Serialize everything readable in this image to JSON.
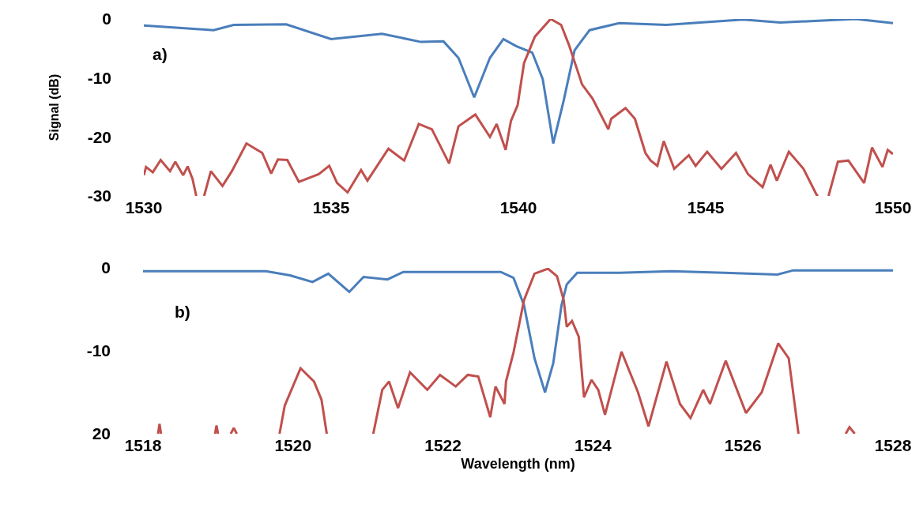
{
  "chart_data": [
    {
      "type": "line",
      "ylabel": "Signal (dB)",
      "annotations": [
        "a)"
      ],
      "xlim": [
        1530,
        1550
      ],
      "xticks": [
        1530,
        1535,
        1540,
        1545,
        1550
      ],
      "ylim": [
        -30,
        0
      ],
      "yticks": [
        -30,
        -20,
        -10,
        0
      ],
      "series": [
        {
          "color": "#4a7ebb",
          "x": [
            1530,
            1531.86,
            1532.4,
            1533.8,
            1535.0,
            1536.36,
            1537.4,
            1538.0,
            1538.4,
            1538.82,
            1539.24,
            1539.6,
            1539.94,
            1540.37,
            1540.65,
            1540.93,
            1541.21,
            1541.5,
            1541.9,
            1542.69,
            1543.95,
            1546.0,
            1546.99,
            1549.0,
            1550.0
          ],
          "values": [
            -1.1,
            -1.9,
            -1.0,
            -0.9,
            -3.4,
            -2.5,
            -3.9,
            -3.8,
            -6.6,
            -13.3,
            -6.6,
            -3.4,
            -4.6,
            -5.7,
            -10.2,
            -21.1,
            -13.8,
            -5.3,
            -1.9,
            -0.7,
            -1.0,
            -0.1,
            -0.6,
            0,
            -0.7
          ]
        },
        {
          "color": "#c0504d",
          "x": [
            1530,
            1530.06,
            1530.24,
            1530.45,
            1530.7,
            1530.84,
            1531.05,
            1531.17,
            1531.3,
            1531.4,
            1531.5,
            1531.61,
            1531.79,
            1532.1,
            1532.35,
            1532.74,
            1533.16,
            1533.4,
            1533.58,
            1533.83,
            1534.14,
            1534.67,
            1534.95,
            1535.16,
            1535.44,
            1535.8,
            1535.97,
            1536.53,
            1536.95,
            1537.34,
            1537.69,
            1538.15,
            1538.4,
            1538.85,
            1539.24,
            1539.42,
            1539.66,
            1539.8,
            1539.98,
            1540.15,
            1540.44,
            1540.86,
            1541.14,
            1541.35,
            1541.7,
            1541.98,
            1542.4,
            1542.48,
            1542.86,
            1543.11,
            1543.39,
            1543.53,
            1543.71,
            1543.88,
            1544.16,
            1544.55,
            1544.73,
            1545.04,
            1545.42,
            1545.81,
            1546.13,
            1546.52,
            1546.73,
            1546.9,
            1547.22,
            1547.61,
            1547.96,
            1548.0,
            1548.2,
            1548.28,
            1548.53,
            1548.81,
            1549.23,
            1549.44,
            1549.72,
            1549.86,
            1550.0
          ],
          "values": [
            -26.5,
            -25.1,
            -26.0,
            -23.9,
            -25.8,
            -24.2,
            -26.5,
            -25.0,
            -27.1,
            -30,
            null,
            -30,
            -25.8,
            -28.3,
            -25.8,
            -21.1,
            -22.7,
            -26.2,
            -23.8,
            -23.9,
            -27.6,
            -26.3,
            -24.9,
            -27.8,
            -29.4,
            -25.6,
            -27.4,
            -22.0,
            -24.0,
            -17.8,
            -18.7,
            -24.5,
            -18.2,
            -16.2,
            -20.0,
            -17.8,
            -22.2,
            -17.3,
            -14.6,
            -7.5,
            -3.0,
            0,
            -1.0,
            -4.4,
            -11.1,
            -13.5,
            -18.7,
            -16.9,
            -15.1,
            -16.9,
            -22.7,
            -24.0,
            -24.9,
            -20.7,
            -25.4,
            -23.1,
            -24.9,
            -22.5,
            -25.4,
            -22.7,
            -26.3,
            -28.5,
            -24.7,
            -27.4,
            -22.5,
            -25.4,
            -29.8,
            -30,
            null,
            -30,
            -24.2,
            -24.0,
            -27.8,
            -21.8,
            -25.1,
            -22.2,
            -22.9
          ]
        }
      ]
    },
    {
      "type": "line",
      "xlabel": "Wavelength (nm)",
      "annotations": [
        "b)"
      ],
      "xlim": [
        1518,
        1528
      ],
      "xticks": [
        1518,
        1520,
        1522,
        1524,
        1526,
        1528
      ],
      "ylim": [
        -20,
        0
      ],
      "yticks": [
        {
          "value": -20,
          "label": "20"
        },
        -10,
        0
      ],
      "series": [
        {
          "color": "#4a7ebb",
          "x": [
            1518,
            1518.73,
            1519.64,
            1519.96,
            1520.26,
            1520.47,
            1520.75,
            1520.94,
            1521.26,
            1521.47,
            1522.77,
            1522.94,
            1523.08,
            1523.22,
            1523.36,
            1523.47,
            1523.58,
            1523.65,
            1523.79,
            1524.35,
            1525.05,
            1525.75,
            1526.46,
            1526.67,
            1528.0
          ],
          "values": [
            -0.4,
            -0.4,
            -0.4,
            -0.9,
            -1.7,
            -0.7,
            -2.9,
            -1.1,
            -1.4,
            -0.5,
            -0.5,
            -1.2,
            -4.5,
            -10.9,
            -15.0,
            -11.5,
            -4.5,
            -2.0,
            -0.6,
            -0.6,
            -0.4,
            -0.6,
            -0.8,
            -0.3,
            -0.3
          ]
        },
        {
          "color": "#c0504d",
          "x": [
            1518.2,
            1518.22,
            1518.24,
            1518.3,
            1518.96,
            1518.98,
            1519.0,
            1519.1,
            1519.17,
            1519.21,
            1519.25,
            1519.5,
            1519.82,
            1519.89,
            1520.1,
            1520.28,
            1520.38,
            1520.45,
            1520.7,
            1521.07,
            1521.19,
            1521.28,
            1521.4,
            1521.56,
            1521.79,
            1521.96,
            1522.17,
            1522.33,
            1522.47,
            1522.63,
            1522.7,
            1522.82,
            1522.84,
            1522.94,
            1523.08,
            1523.22,
            1523.4,
            1523.52,
            1523.61,
            1523.65,
            1523.72,
            1523.81,
            1523.88,
            1523.98,
            1524.07,
            1524.16,
            1524.38,
            1524.6,
            1524.74,
            1524.98,
            1525.16,
            1525.3,
            1525.47,
            1525.56,
            1525.77,
            1526.04,
            1526.25,
            1526.47,
            1526.61,
            1526.74,
            1527.0,
            1527.37,
            1527.42,
            1527.49
          ],
          "values": [
            -20,
            -18.8,
            -20,
            null,
            -20,
            -19,
            -20,
            null,
            -20,
            -19.3,
            -20,
            null,
            -20,
            -16.6,
            -12.1,
            -13.7,
            -15.9,
            -20,
            null,
            -20,
            -14.7,
            -13.7,
            -16.9,
            -12.6,
            -14.7,
            -12.9,
            -14.3,
            -12.9,
            -13.1,
            -18.0,
            -14.3,
            -16.4,
            -13.7,
            -10.2,
            -3.9,
            -0.7,
            -0.1,
            -1.0,
            -3.9,
            -7.1,
            -6.4,
            -8.3,
            -15.6,
            -13.5,
            -14.7,
            -17.7,
            -10.1,
            -15.0,
            -19.1,
            -11.3,
            -16.4,
            -18.1,
            -14.7,
            -16.4,
            -11.2,
            -17.5,
            -15.0,
            -9.1,
            -10.9,
            -20,
            null,
            -20,
            -19.2,
            -20
          ]
        }
      ]
    }
  ]
}
